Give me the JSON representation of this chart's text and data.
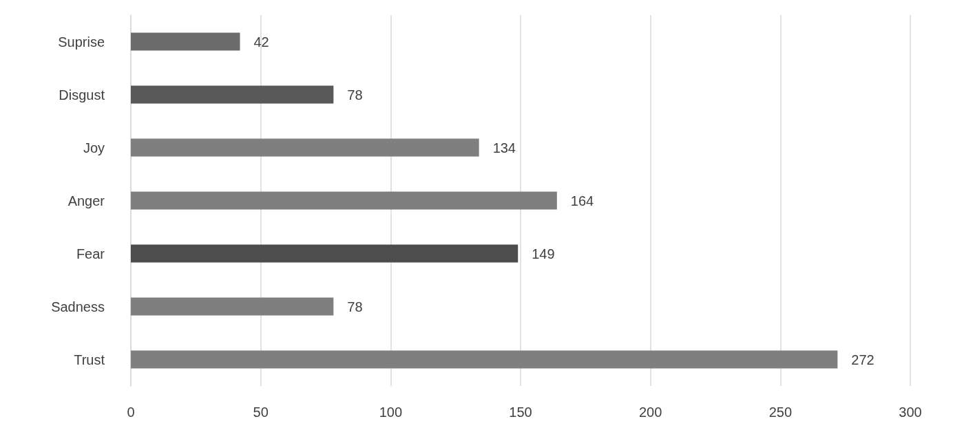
{
  "chart_data": {
    "type": "bar",
    "orientation": "horizontal",
    "categories": [
      "Suprise",
      "Disgust",
      "Joy",
      "Anger",
      "Fear",
      "Sadness",
      "Trust"
    ],
    "values": [
      42,
      78,
      134,
      164,
      149,
      78,
      272
    ],
    "colors": [
      "#6b6b6b",
      "#595959",
      "#7f7f7f",
      "#7f7f7f",
      "#4d4d4d",
      "#7f7f7f",
      "#7f7f7f"
    ],
    "xlim": [
      0,
      300
    ],
    "xticks": [
      0,
      50,
      100,
      150,
      200,
      250,
      300
    ],
    "grid": "x",
    "data_labels": true
  }
}
